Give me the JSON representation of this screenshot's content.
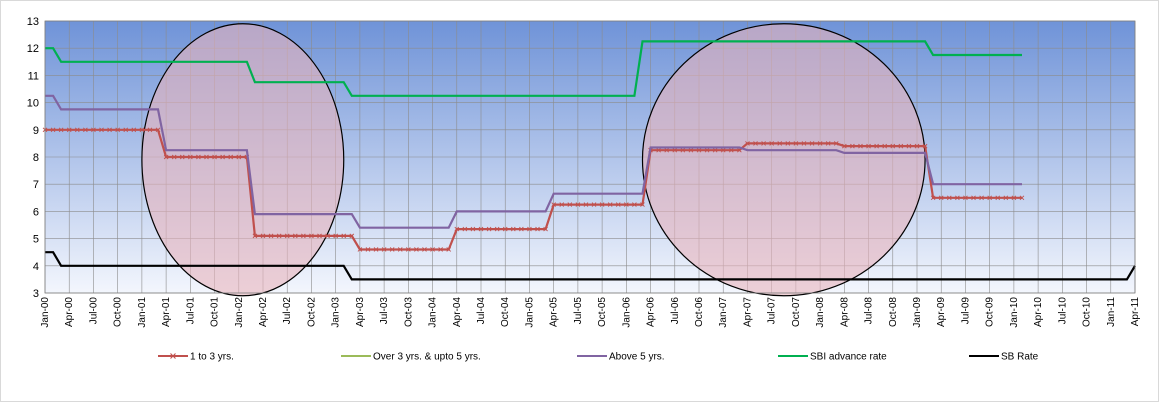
{
  "chart_data": {
    "type": "line",
    "x_tick_labels": [
      "Jan-00",
      "Apr-00",
      "Jul-00",
      "Oct-00",
      "Jan-01",
      "Apr-01",
      "Jul-01",
      "Oct-01",
      "Jan-02",
      "Apr-02",
      "Jul-02",
      "Oct-02",
      "Jan-03",
      "Apr-03",
      "Jul-03",
      "Oct-03",
      "Jan-04",
      "Apr-04",
      "Jul-04",
      "Oct-04",
      "Jan-05",
      "Apr-05",
      "Jul-05",
      "Oct-05",
      "Jan-06",
      "Apr-06",
      "Jul-06",
      "Oct-06",
      "Jan-07",
      "Apr-07",
      "Jul-07",
      "Oct-07",
      "Jan-08",
      "Apr-08",
      "Jul-08",
      "Oct-08",
      "Jan-09",
      "Apr-09",
      "Jul-09",
      "Oct-09",
      "Jan-10",
      "Apr-10",
      "Jul-10",
      "Oct-10",
      "Jan-11",
      "Apr-11"
    ],
    "ylim": [
      3,
      13
    ],
    "y_ticks": [
      3,
      4,
      5,
      6,
      7,
      8,
      9,
      10,
      11,
      12,
      13
    ],
    "grid": true,
    "legend_position": "bottom",
    "background_gradient": [
      "#6f93d8",
      "#f3f6fd"
    ],
    "annotations": [
      {
        "shape": "ellipse",
        "x_from": "Jan-01",
        "x_to": "Feb-03",
        "y_from": 2.9,
        "y_to": 12.9,
        "fill": "#e8b4bc"
      },
      {
        "shape": "ellipse",
        "x_from": "Mar-06",
        "x_to": "Feb-09",
        "y_from": 2.9,
        "y_to": 12.9,
        "fill": "#e8b4bc"
      }
    ],
    "series": [
      {
        "name": "1 to 3 yrs.",
        "color": "#c0504d",
        "marker": "x",
        "points": [
          [
            "Jan-00",
            9
          ],
          [
            "Mar-01",
            9
          ],
          [
            "Apr-01",
            8
          ],
          [
            "Feb-02",
            8
          ],
          [
            "Mar-02",
            5.1
          ],
          [
            "Mar-03",
            5.1
          ],
          [
            "Apr-03",
            4.6
          ],
          [
            "Mar-04",
            4.6
          ],
          [
            "Apr-04",
            5.35
          ],
          [
            "Mar-05",
            5.35
          ],
          [
            "Apr-05",
            6.25
          ],
          [
            "Mar-06",
            6.25
          ],
          [
            "Apr-06",
            8.25
          ],
          [
            "Mar-07",
            8.25
          ],
          [
            "Apr-07",
            8.5
          ],
          [
            "Mar-08",
            8.5
          ],
          [
            "Apr-08",
            8.4
          ],
          [
            "Feb-09",
            8.4
          ],
          [
            "Mar-09",
            6.5
          ],
          [
            "Feb-10",
            6.5
          ]
        ]
      },
      {
        "name": "Over 3 yrs. & upto 5 yrs.",
        "color": "#9bbb59",
        "marker": "none",
        "points": []
      },
      {
        "name": "Above 5 yrs.",
        "color": "#8064a2",
        "marker": "none",
        "points": [
          [
            "Jan-00",
            10.25
          ],
          [
            "Feb-00",
            10.25
          ],
          [
            "Mar-00",
            9.75
          ],
          [
            "Mar-01",
            9.75
          ],
          [
            "Apr-01",
            8.25
          ],
          [
            "Feb-02",
            8.25
          ],
          [
            "Mar-02",
            5.9
          ],
          [
            "Mar-03",
            5.9
          ],
          [
            "Apr-03",
            5.4
          ],
          [
            "Mar-04",
            5.4
          ],
          [
            "Apr-04",
            6
          ],
          [
            "Mar-05",
            6
          ],
          [
            "Apr-05",
            6.65
          ],
          [
            "Mar-06",
            6.65
          ],
          [
            "Apr-06",
            8.35
          ],
          [
            "Mar-07",
            8.35
          ],
          [
            "Apr-07",
            8.25
          ],
          [
            "Mar-08",
            8.25
          ],
          [
            "Apr-08",
            8.15
          ],
          [
            "Feb-09",
            8.15
          ],
          [
            "Mar-09",
            7
          ],
          [
            "Feb-10",
            7
          ]
        ]
      },
      {
        "name": "SBI advance rate",
        "color": "#00b050",
        "marker": "none",
        "points": [
          [
            "Jan-00",
            12
          ],
          [
            "Feb-00",
            12
          ],
          [
            "Mar-00",
            11.5
          ],
          [
            "Feb-02",
            11.5
          ],
          [
            "Mar-02",
            10.75
          ],
          [
            "Feb-03",
            10.75
          ],
          [
            "Mar-03",
            10.25
          ],
          [
            "Feb-06",
            10.25
          ],
          [
            "Mar-06",
            12.25
          ],
          [
            "Feb-09",
            12.25
          ],
          [
            "Mar-09",
            11.75
          ],
          [
            "Feb-10",
            11.75
          ]
        ]
      },
      {
        "name": "SB Rate",
        "color": "#000000",
        "marker": "none",
        "points": [
          [
            "Jan-00",
            4.5
          ],
          [
            "Feb-00",
            4.5
          ],
          [
            "Mar-00",
            4
          ],
          [
            "Feb-03",
            4
          ],
          [
            "Mar-03",
            3.5
          ],
          [
            "Mar-11",
            3.5
          ],
          [
            "Apr-11",
            4
          ]
        ]
      }
    ]
  }
}
